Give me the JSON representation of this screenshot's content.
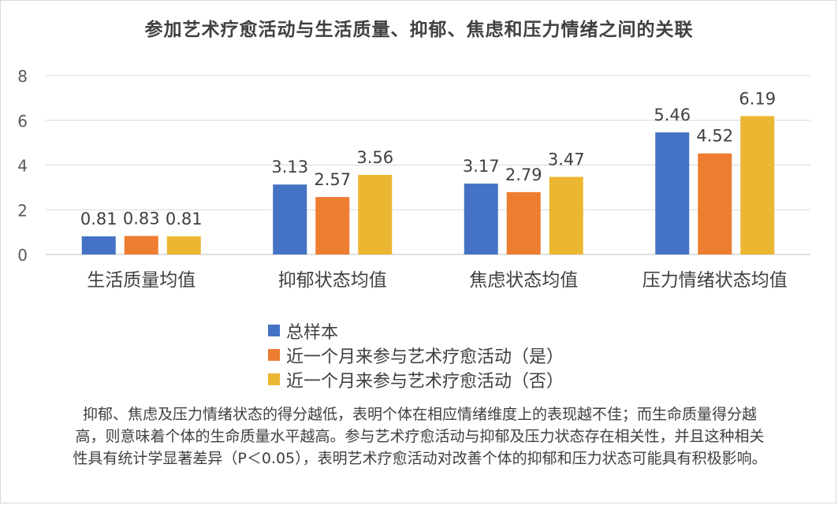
{
  "chart_data": {
    "type": "bar",
    "title": "参加艺术疗愈活动与生活质量、抑郁、焦虑和压力情绪之间的关联",
    "categories": [
      "生活质量均值",
      "抑郁状态均值",
      "焦虑状态均值",
      "压力情绪状态均值"
    ],
    "series": [
      {
        "name": "总样本",
        "color": "#4472c4",
        "values": [
          0.81,
          3.13,
          3.17,
          5.46
        ]
      },
      {
        "name": "近一个月来参与艺术疗愈活动（是）",
        "color": "#ed7d31",
        "values": [
          0.83,
          2.57,
          2.79,
          4.52
        ]
      },
      {
        "name": "近一个月来参与艺术疗愈活动（否）",
        "color": "#ebb631",
        "values": [
          0.81,
          3.56,
          3.47,
          6.19
        ]
      }
    ],
    "yticks": [
      0,
      2,
      4,
      6,
      8
    ],
    "ylim": [
      0,
      8
    ],
    "grid": true,
    "legend_position": "bottom",
    "xlabel": "",
    "ylabel": ""
  },
  "note": "抑郁、焦虑及压力情绪状态的得分越低，表明个体在相应情绪维度上的表现越不佳；而生命质量得分越高，则意味着个体的生命质量水平越高。参与艺术疗愈活动与抑郁及压力状态存在相关性，并且这种相关性具有统计学显著差异（P＜0.05），表明艺术疗愈活动对改善个体的抑郁和压力状态可能具有积极影响。"
}
